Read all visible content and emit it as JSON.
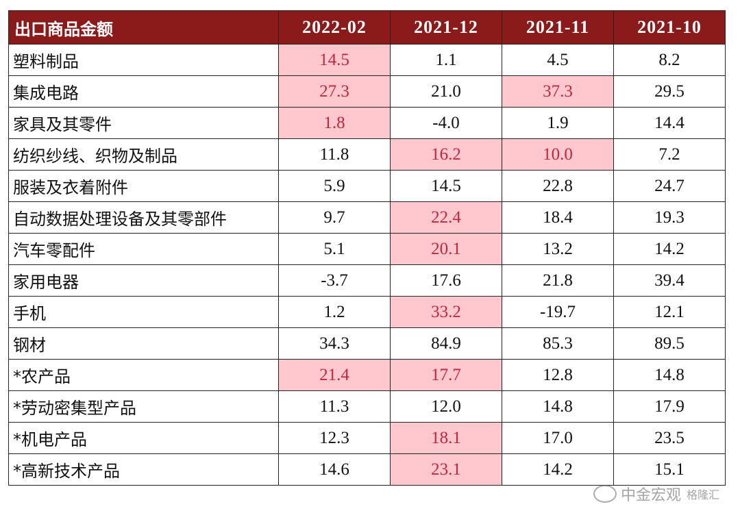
{
  "chart_data": {
    "type": "table",
    "header": {
      "label": "出口商品金额",
      "columns": [
        "2022-02",
        "2021-12",
        "2021-11",
        "2021-10"
      ]
    },
    "rows": [
      {
        "name": "塑料制品",
        "values": [
          "14.5",
          "1.1",
          "4.5",
          "8.2"
        ],
        "highlight": [
          true,
          false,
          false,
          false
        ]
      },
      {
        "name": "集成电路",
        "values": [
          "27.3",
          "21.0",
          "37.3",
          "29.5"
        ],
        "highlight": [
          true,
          false,
          true,
          false
        ]
      },
      {
        "name": "家具及其零件",
        "values": [
          "1.8",
          "-4.0",
          "1.9",
          "14.4"
        ],
        "highlight": [
          true,
          false,
          false,
          false
        ]
      },
      {
        "name": "纺织纱线、织物及制品",
        "values": [
          "11.8",
          "16.2",
          "10.0",
          "7.2"
        ],
        "highlight": [
          false,
          true,
          true,
          false
        ]
      },
      {
        "name": "服装及衣着附件",
        "values": [
          "5.9",
          "14.5",
          "22.8",
          "24.7"
        ],
        "highlight": [
          false,
          false,
          false,
          false
        ]
      },
      {
        "name": "自动数据处理设备及其零部件",
        "values": [
          "9.7",
          "22.4",
          "18.4",
          "19.3"
        ],
        "highlight": [
          false,
          true,
          false,
          false
        ]
      },
      {
        "name": "汽车零配件",
        "values": [
          "5.1",
          "20.1",
          "13.2",
          "14.2"
        ],
        "highlight": [
          false,
          true,
          false,
          false
        ]
      },
      {
        "name": "家用电器",
        "values": [
          "-3.7",
          "17.6",
          "21.8",
          "39.4"
        ],
        "highlight": [
          false,
          false,
          false,
          false
        ]
      },
      {
        "name": "手机",
        "values": [
          "1.2",
          "33.2",
          "-19.7",
          "12.1"
        ],
        "highlight": [
          false,
          true,
          false,
          false
        ]
      },
      {
        "name": "钢材",
        "values": [
          "34.3",
          "84.9",
          "85.3",
          "89.5"
        ],
        "highlight": [
          false,
          false,
          false,
          false
        ]
      },
      {
        "name": "*农产品",
        "values": [
          "21.4",
          "17.7",
          "12.8",
          "14.8"
        ],
        "highlight": [
          true,
          true,
          false,
          false
        ]
      },
      {
        "name": "*劳动密集型产品",
        "values": [
          "11.3",
          "12.0",
          "14.8",
          "17.9"
        ],
        "highlight": [
          false,
          false,
          false,
          false
        ]
      },
      {
        "name": "*机电产品",
        "values": [
          "12.3",
          "18.1",
          "17.0",
          "23.5"
        ],
        "highlight": [
          false,
          true,
          false,
          false
        ]
      },
      {
        "name": "*高新技术产品",
        "values": [
          "14.6",
          "23.1",
          "14.2",
          "15.1"
        ],
        "highlight": [
          false,
          true,
          false,
          false
        ]
      }
    ],
    "colors": {
      "header_bg": "#8b1a1a",
      "highlight_bg": "#ffc7ce",
      "highlight_text": "#c0273c"
    }
  },
  "watermark": {
    "main": "中金宏观",
    "sub": "格隆汇"
  }
}
